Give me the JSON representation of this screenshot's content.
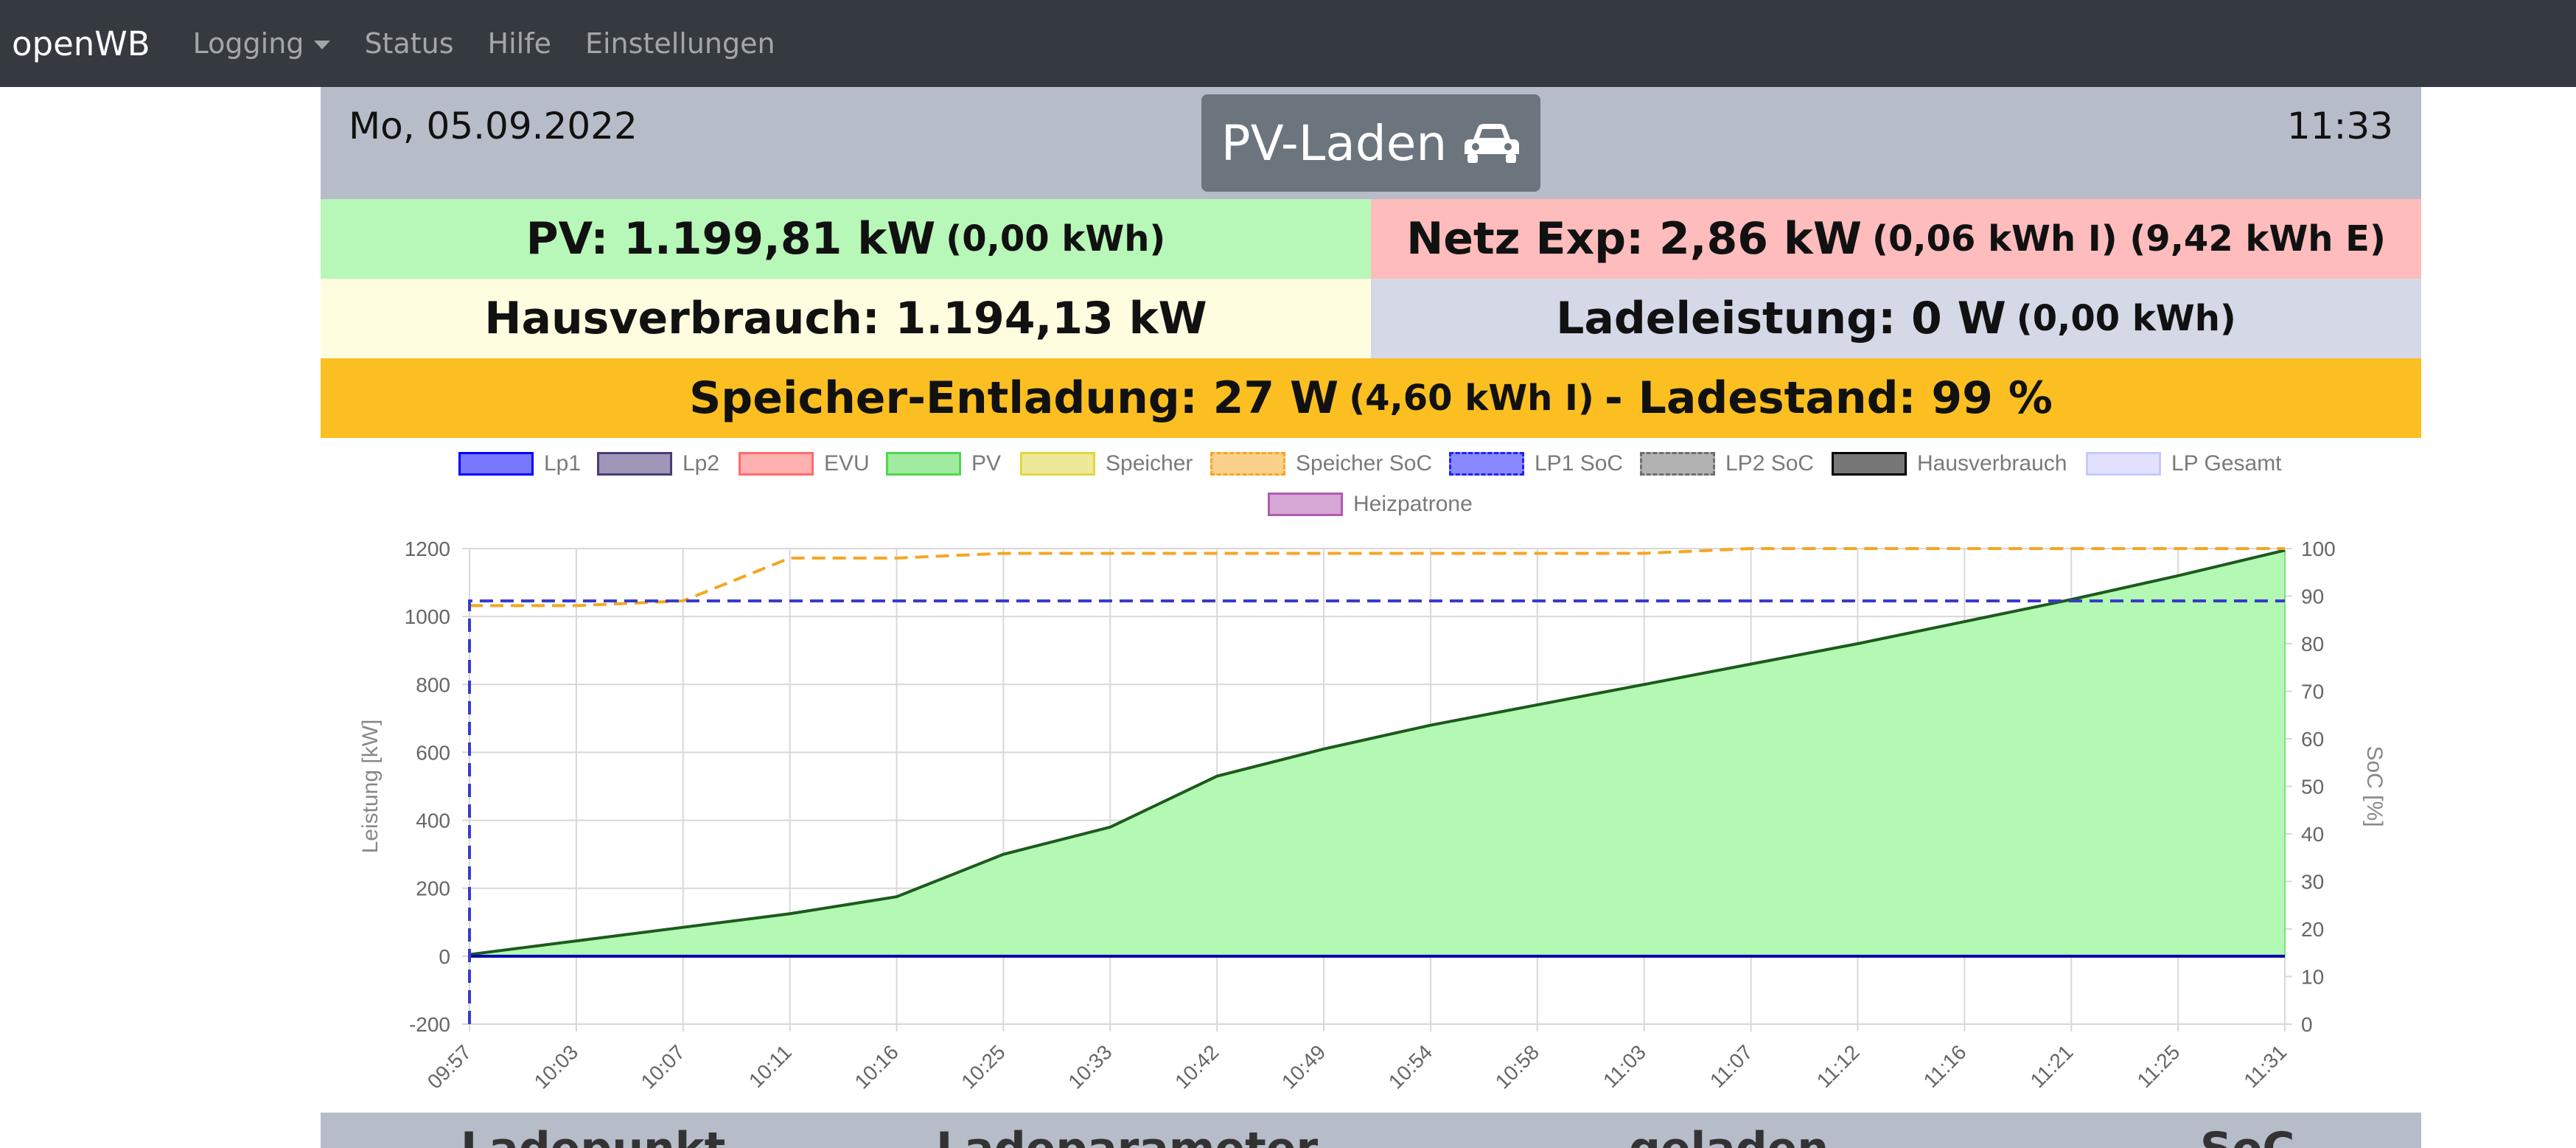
{
  "navbar": {
    "brand": "openWB",
    "items": [
      {
        "label": "Logging",
        "dropdown": true
      },
      {
        "label": "Status"
      },
      {
        "label": "Hilfe"
      },
      {
        "label": "Einstellungen"
      }
    ]
  },
  "header": {
    "date": "Mo, 05.09.2022",
    "mode": "PV-Laden",
    "mode_icon": "car-icon",
    "time": "11:33"
  },
  "stats": {
    "pv": {
      "main": "PV: 1.199,81 kW",
      "detail": "(0,00 kWh)"
    },
    "netz": {
      "main": "Netz Exp: 2,86 kW",
      "detail": "(0,06 kWh I) (9,42 kWh E)"
    },
    "haus": {
      "main": "Hausverbrauch: 1.194,13 kW"
    },
    "lade": {
      "main": "Ladeleistung: 0 W",
      "detail": "(0,00 kWh)"
    },
    "speicher": {
      "main": "Speicher-Entladung: 27 W",
      "detail": "(4,60 kWh I)",
      "suffix": "- Ladestand: 99 %"
    }
  },
  "chart_data": {
    "type": "line",
    "legend_position": "top",
    "grid": true,
    "legend": [
      {
        "name": "Lp1",
        "color": "#0000ff",
        "dashed": false
      },
      {
        "name": "Lp2",
        "color": "#4b3b7a",
        "dashed": false
      },
      {
        "name": "EVU",
        "color": "#ff6b6b",
        "dashed": false
      },
      {
        "name": "PV",
        "color": "#4cd94c",
        "dashed": false
      },
      {
        "name": "Speicher",
        "color": "#e0d640",
        "dashed": false
      },
      {
        "name": "Speicher SoC",
        "color": "#f5a623",
        "dashed": true
      },
      {
        "name": "LP1 SoC",
        "color": "#2020ff",
        "dashed": true
      },
      {
        "name": "LP2 SoC",
        "color": "#6e6e6e",
        "dashed": true
      },
      {
        "name": "Hausverbrauch",
        "color": "#000000",
        "dashed": false
      },
      {
        "name": "LP Gesamt",
        "color": "#c8c8ff",
        "dashed": false
      },
      {
        "name": "Heizpatrone",
        "color": "#b05cb0",
        "dashed": false
      }
    ],
    "y_left": {
      "label": "Leistung [kW]",
      "min": -200,
      "max": 1200,
      "ticks": [
        -200,
        0,
        200,
        400,
        600,
        800,
        1000,
        1200
      ]
    },
    "y_right": {
      "label": "SoC [%]",
      "min": 0,
      "max": 100,
      "ticks": [
        0,
        10,
        20,
        30,
        40,
        50,
        60,
        70,
        80,
        90,
        100
      ]
    },
    "x_ticks": [
      "09:57",
      "10:03",
      "10:07",
      "10:11",
      "10:16",
      "10:25",
      "10:33",
      "10:42",
      "10:49",
      "10:54",
      "10:58",
      "11:03",
      "11:07",
      "11:12",
      "11:16",
      "11:21",
      "11:25",
      "11:31"
    ],
    "series": [
      {
        "name": "PV",
        "axis": "left",
        "fill": true,
        "values": [
          5,
          45,
          85,
          125,
          175,
          300,
          380,
          530,
          610,
          680,
          740,
          800,
          860,
          920,
          985,
          1050,
          1120,
          1195
        ]
      },
      {
        "name": "Hausverbrauch",
        "axis": "left",
        "values": [
          5,
          45,
          85,
          125,
          175,
          300,
          380,
          530,
          610,
          680,
          740,
          800,
          860,
          920,
          985,
          1050,
          1120,
          1195
        ]
      },
      {
        "name": "Lp1",
        "axis": "left",
        "values": [
          0,
          0,
          0,
          0,
          0,
          0,
          0,
          0,
          0,
          0,
          0,
          0,
          0,
          0,
          0,
          0,
          0,
          0
        ]
      },
      {
        "name": "Speicher SoC",
        "axis": "right",
        "values": [
          88,
          88,
          89,
          98,
          98,
          99,
          99,
          99,
          99,
          99,
          99,
          99,
          100,
          100,
          100,
          100,
          100,
          100
        ]
      },
      {
        "name": "LP1 SoC",
        "axis": "right",
        "values": [
          89,
          89,
          89,
          89,
          89,
          89,
          89,
          89,
          89,
          89,
          89,
          89,
          89,
          89,
          89,
          89,
          89,
          89
        ]
      }
    ]
  },
  "footer": {
    "columns": [
      "Ladepunkt",
      "Ladeparameter",
      "geladen",
      "SoC"
    ]
  }
}
